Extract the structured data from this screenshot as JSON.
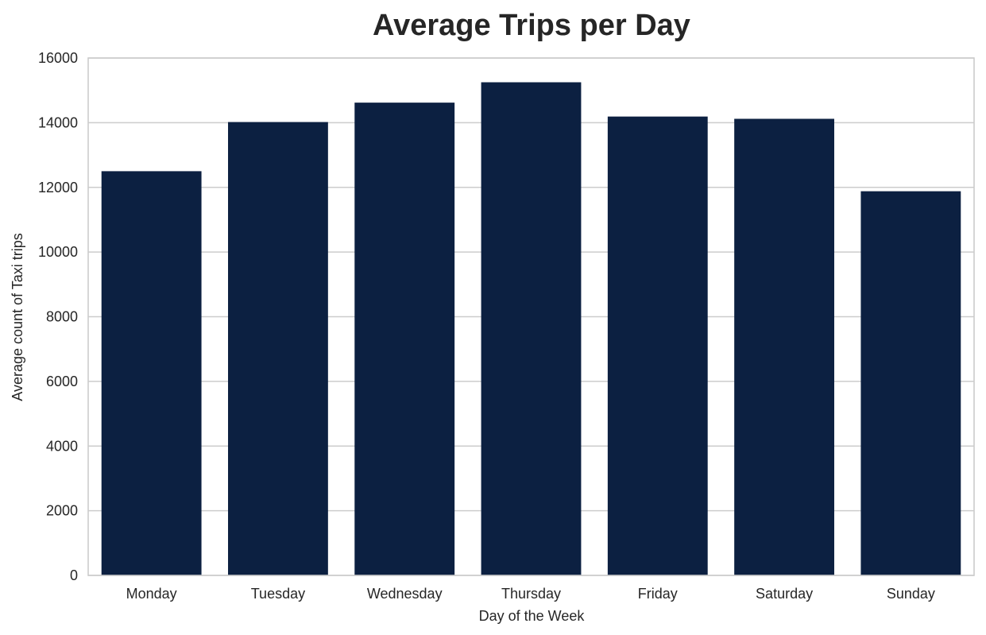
{
  "chart_data": {
    "type": "bar",
    "title": "Average Trips per Day",
    "xlabel": "Day of the Week",
    "ylabel": "Average count of Taxi trips",
    "categories": [
      "Monday",
      "Tuesday",
      "Wednesday",
      "Thursday",
      "Friday",
      "Saturday",
      "Sunday"
    ],
    "values": [
      12500,
      14020,
      14620,
      15250,
      14190,
      14120,
      11880
    ],
    "ylim": [
      0,
      16000
    ],
    "yticks": [
      "0",
      "2000",
      "4000",
      "6000",
      "8000",
      "10000",
      "12000",
      "14000",
      "16000"
    ],
    "grid": "horizontal",
    "bar_color": "#0c2041",
    "grid_color": "#cccccc"
  }
}
